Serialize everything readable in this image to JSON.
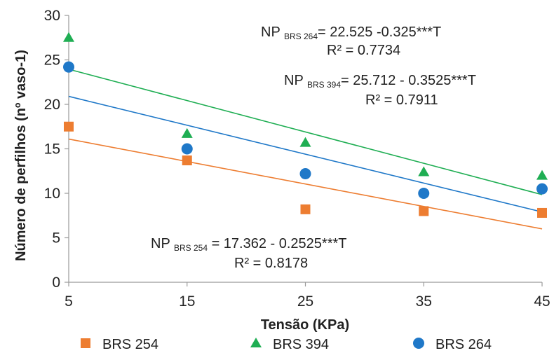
{
  "chart_data": {
    "type": "scatter",
    "title": "",
    "xlabel": "Tensão (KPa)",
    "ylabel": "Número de perfilhos (nº vaso-1)",
    "xlim": [
      5,
      45
    ],
    "ylim": [
      0,
      30
    ],
    "x_ticks": [
      "5",
      "15",
      "25",
      "35",
      "45"
    ],
    "y_ticks": [
      "0",
      "5",
      "10",
      "15",
      "20",
      "25",
      "30"
    ],
    "x": [
      5,
      15,
      25,
      35,
      45
    ],
    "grid": false,
    "legend_position": "bottom",
    "series": [
      {
        "name": "BRS 254",
        "marker": "square",
        "color": "#ed7d31",
        "values": [
          17.5,
          13.7,
          8.2,
          8.0,
          7.8
        ],
        "trend": {
          "intercept": 17.362,
          "slope": -0.2525
        },
        "equation": {
          "prefix": "NP",
          "subscript": "BRS 254",
          "rest": " = 17.362 - 0.2525***T",
          "r2": "R² = 0.8178"
        }
      },
      {
        "name": "BRS 394",
        "marker": "triangle",
        "color": "#1fae53",
        "values": [
          27.5,
          16.7,
          15.7,
          12.4,
          12.0
        ],
        "trend": {
          "intercept": 25.712,
          "slope": -0.3525
        },
        "equation": {
          "prefix": "NP",
          "subscript": "BRS 394",
          "rest": "= 25.712 - 0.3525***T",
          "r2": "R² = 0.7911"
        }
      },
      {
        "name": "BRS 264",
        "marker": "circle",
        "color": "#1f78c8",
        "values": [
          24.2,
          15.0,
          12.2,
          10.0,
          10.5
        ],
        "trend": {
          "intercept": 22.525,
          "slope": -0.325
        },
        "equation": {
          "prefix": "NP",
          "subscript": "BRS 264",
          "rest": "= 22.525 -0.325***T",
          "r2": "R² = 0.7734"
        }
      }
    ]
  }
}
